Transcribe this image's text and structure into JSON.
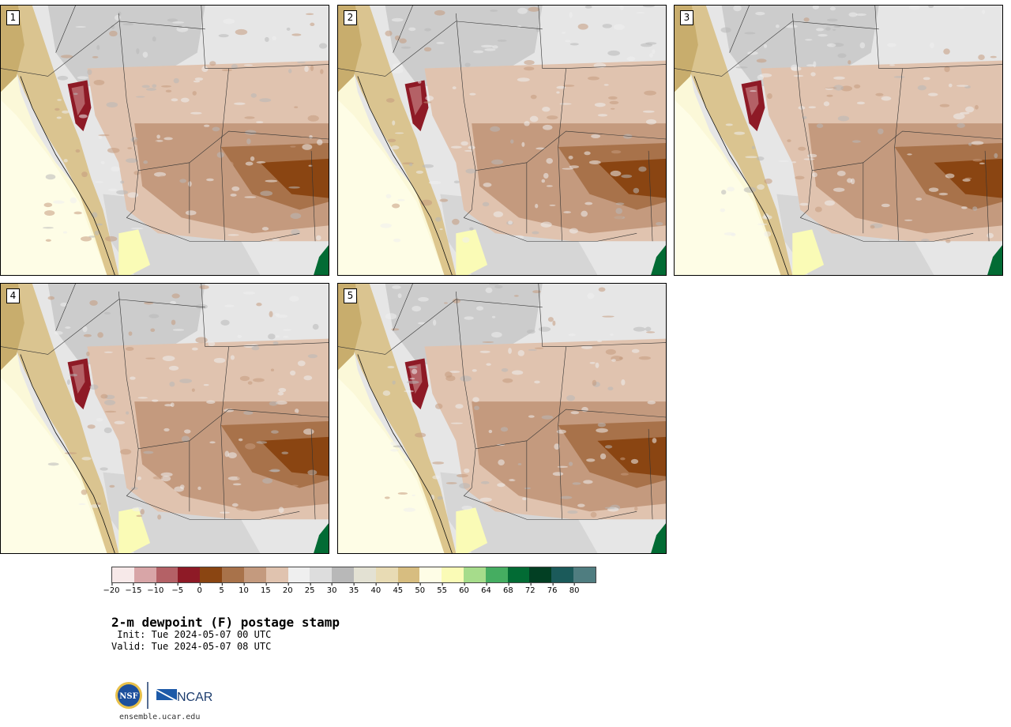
{
  "panels": [
    {
      "label": "1"
    },
    {
      "label": "2"
    },
    {
      "label": "3"
    },
    {
      "label": "4"
    },
    {
      "label": "5"
    }
  ],
  "colorbar": {
    "colors": [
      "#f7e9e9",
      "#d8a5a7",
      "#b46166",
      "#8e1a26",
      "#8a4512",
      "#a8724a",
      "#c49a7e",
      "#e0c3af",
      "#efefef",
      "#dddddd",
      "#b8b8b8",
      "#e3e1d3",
      "#e8dbb4",
      "#d7bd80",
      "#fefde6",
      "#fafbb6",
      "#a6dc8b",
      "#45ad61",
      "#026b34",
      "#023f23",
      "#1b5a5a",
      "#4f7d80"
    ],
    "ticks": [
      "−20",
      "−15",
      "−10",
      "−5",
      "0",
      "5",
      "10",
      "15",
      "20",
      "25",
      "30",
      "35",
      "40",
      "45",
      "50",
      "55",
      "60",
      "64",
      "68",
      "72",
      "76",
      "80"
    ]
  },
  "title": "2-m dewpoint (F) postage stamp",
  "init": " Init: Tue 2024-05-07 00 UTC",
  "valid": "Valid: Tue 2024-05-07 08 UTC",
  "logo": {
    "nsf": "NSF",
    "ncar": "NCAR"
  },
  "url": "ensemble.ucar.edu"
}
